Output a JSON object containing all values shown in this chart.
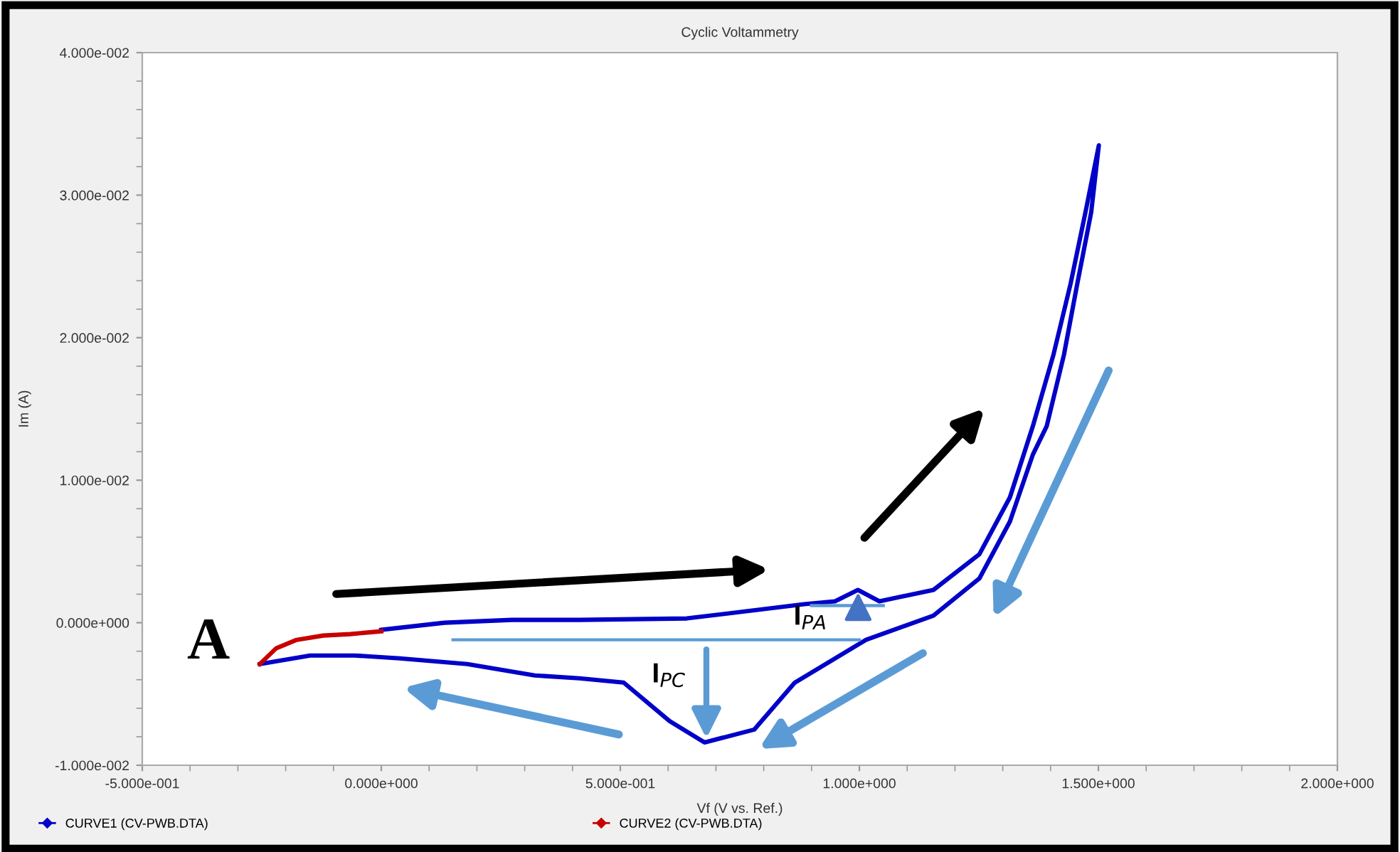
{
  "chart_data": {
    "type": "line",
    "title": "Cyclic Voltammetry",
    "xlabel": "Vf (V vs. Ref.)",
    "ylabel": "Im (A)",
    "series": [
      {
        "name": "CURVE1 (CV-PWB.DTA)",
        "color": "#0000c8",
        "x": [
          0.0,
          0.132,
          0.273,
          0.414,
          0.639,
          0.885,
          0.949,
          0.997,
          1.042,
          1.155,
          1.251,
          1.315,
          1.363,
          1.406,
          1.442,
          1.473,
          1.501,
          1.485,
          1.456,
          1.428,
          1.392,
          1.363,
          1.315,
          1.251,
          1.155,
          1.014,
          0.865,
          0.78,
          0.676,
          0.603,
          0.507,
          0.414,
          0.321,
          0.18,
          0.039,
          -0.056,
          -0.149,
          -0.254
        ],
        "values": [
          -0.0005,
          0.0,
          0.0002,
          0.0002,
          0.0003,
          0.0013,
          0.0015,
          0.0023,
          0.0015,
          0.0023,
          0.0048,
          0.0088,
          0.0138,
          0.0188,
          0.0238,
          0.0288,
          0.0335,
          0.0288,
          0.0238,
          0.0188,
          0.0138,
          0.0118,
          0.0071,
          0.0031,
          0.0005,
          -0.0012,
          -0.0042,
          -0.0075,
          -0.0084,
          -0.0069,
          -0.0042,
          -0.0039,
          -0.0037,
          -0.0029,
          -0.0025,
          -0.0023,
          -0.0023,
          -0.0029
        ]
      },
      {
        "name": "CURVE2 (CV-PWB.DTA)",
        "color": "#c80000",
        "x": [
          -0.254,
          -0.22,
          -0.177,
          -0.121,
          -0.065,
          0.0
        ],
        "values": [
          -0.0029,
          -0.0018,
          -0.0012,
          -0.0009,
          -0.0008,
          -0.0006
        ]
      },
      {
        "color": "#5b9bd5",
        "x": [
          0.15,
          1.0
        ],
        "values": [
          -0.0012,
          -0.0012
        ]
      },
      {
        "color": "#5b9bd5",
        "x": [
          0.9,
          1.05
        ],
        "values": [
          0.0012,
          0.0012
        ]
      }
    ],
    "xlim": [
      -0.5,
      2.0
    ],
    "xticks": [
      {
        "value": -0.5,
        "label": "-5.000e-001"
      },
      {
        "value": 0,
        "label": "0.000e+000"
      },
      {
        "value": 0.5,
        "label": "5.000e-001"
      },
      {
        "value": 1.0,
        "label": "1.000e+000"
      },
      {
        "value": 1.5,
        "label": "1.500e+000"
      },
      {
        "value": 2.0,
        "label": "2.000e+000"
      }
    ],
    "ylim": [
      -0.01,
      0.04
    ],
    "yticks": [
      {
        "value": -0.01,
        "label": "-1.000e-002"
      },
      {
        "value": 0,
        "label": "0.000e+000"
      },
      {
        "value": 0.01,
        "label": "1.000e-002"
      },
      {
        "value": 0.02,
        "label": "2.000e-002"
      },
      {
        "value": 0.03,
        "label": "3.000e-002"
      },
      {
        "value": 0.04,
        "label": "4.000e-002"
      }
    ],
    "annotations": [
      {
        "text": "A",
        "x": -0.254,
        "y": -0.0029
      },
      {
        "text": "I$_{PA}$",
        "x": 0.997,
        "y": 0.0023
      },
      {
        "text": "I$_{PC}$",
        "x": 0.676,
        "y": -0.0084
      }
    ],
    "legend": "bottom",
    "grid": false,
    "marker": "none",
    "line_style": "solid"
  }
}
